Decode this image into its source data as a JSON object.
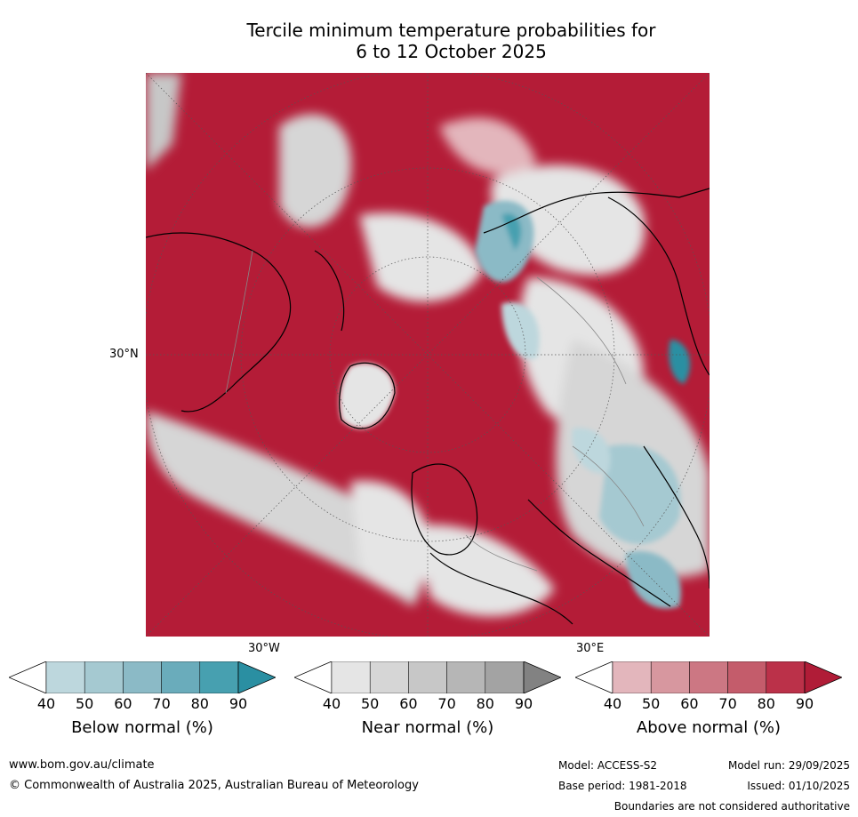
{
  "title": {
    "line1": "Tercile minimum temperature probabilities for",
    "line2": "6 to 12 October 2025"
  },
  "map": {
    "lat_label": "30°N",
    "lon_label_left": "30°W",
    "lon_label_right": "30°E"
  },
  "colorbars": [
    {
      "label": "Below normal (%)",
      "ticks": [
        "40",
        "50",
        "60",
        "70",
        "80",
        "90"
      ],
      "colors": [
        "#ffffff",
        "#bdd7dd",
        "#a5c9d1",
        "#8bbac6",
        "#6aacbb",
        "#47a0b0",
        "#2a8fa2"
      ]
    },
    {
      "label": "Near normal (%)",
      "ticks": [
        "40",
        "50",
        "60",
        "70",
        "80",
        "90"
      ],
      "colors": [
        "#ffffff",
        "#e5e5e5",
        "#d6d6d6",
        "#c7c7c7",
        "#b6b6b6",
        "#a3a3a3",
        "#828282"
      ]
    },
    {
      "label": "Above normal (%)",
      "ticks": [
        "40",
        "50",
        "60",
        "70",
        "80",
        "90"
      ],
      "colors": [
        "#ffffff",
        "#e3b6bc",
        "#d7979f",
        "#cc7783",
        "#c45c6b",
        "#bb3149",
        "#b01c37"
      ]
    }
  ],
  "footer": {
    "url": "www.bom.gov.au/climate",
    "copyright": "© Commonwealth of Australia 2025, Australian Bureau of Meteorology",
    "model": "Model: ACCESS-S2",
    "base_period": "Base period: 1981-2018",
    "model_run": "Model run: 29/09/2025",
    "issued": "Issued: 01/10/2025",
    "disclaimer": "Boundaries are not considered authoritative"
  }
}
